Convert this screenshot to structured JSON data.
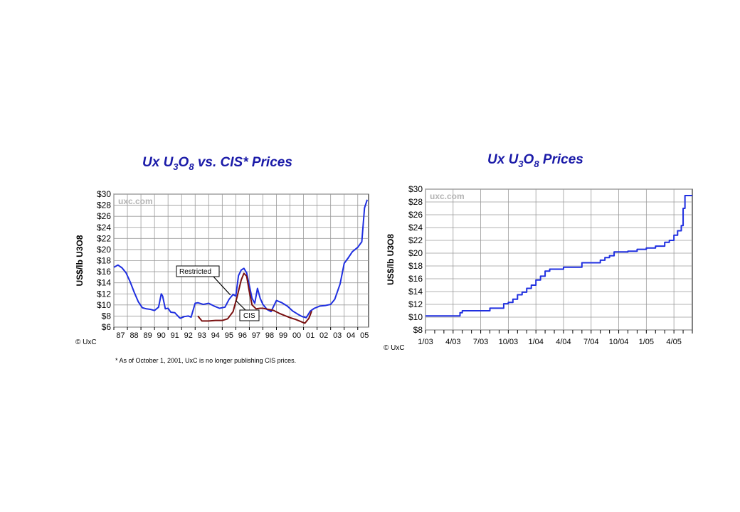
{
  "charts": [
    {
      "title": {
        "pre": "Ux U",
        "sub1": "3",
        "mid": "O",
        "sub2": "8",
        "post": " vs. CIS* Prices"
      },
      "ylabel": "US$/lb U3O8",
      "watermark": "uxc.com",
      "credit": "© UxC",
      "footnote": "* As of October 1, 2001, UxC is no longer publishing CIS prices.",
      "annotations": [
        "Restricted",
        "CIS"
      ]
    },
    {
      "title": {
        "pre": "Ux U",
        "sub1": "3",
        "mid": "O",
        "sub2": "8",
        "post": " Prices"
      },
      "ylabel": "US$/lb U3O8",
      "watermark": "uxc.com",
      "credit": "© UxC"
    }
  ],
  "chart_data": [
    {
      "type": "line",
      "title": "Ux U3O8 vs. CIS* Prices",
      "xlabel": "",
      "ylabel": "US$/lb U3O8",
      "ylim": [
        6,
        30
      ],
      "xlim": [
        1987,
        2005.8
      ],
      "y_ticks": [
        "$6",
        "$8",
        "$10",
        "$12",
        "$14",
        "$16",
        "$18",
        "$20",
        "$22",
        "$24",
        "$26",
        "$28",
        "$30"
      ],
      "x_ticks": [
        "87",
        "88",
        "89",
        "90",
        "91",
        "92",
        "93",
        "94",
        "95",
        "96",
        "97",
        "98",
        "99",
        "00",
        "01",
        "02",
        "03",
        "04",
        "05"
      ],
      "grid": true,
      "series": [
        {
          "name": "Restricted",
          "color": "#1f2fe0",
          "x": [
            1987.0,
            1987.3,
            1987.6,
            1987.9,
            1988.2,
            1988.5,
            1988.8,
            1989.1,
            1989.4,
            1989.7,
            1990.0,
            1990.3,
            1990.5,
            1990.6,
            1990.8,
            1991.0,
            1991.2,
            1991.5,
            1991.8,
            1991.9,
            1992.2,
            1992.5,
            1992.7,
            1993.0,
            1993.2,
            1993.6,
            1994.0,
            1994.4,
            1994.8,
            1995.2,
            1995.5,
            1995.8,
            1996.0,
            1996.2,
            1996.4,
            1996.6,
            1996.8,
            1997.0,
            1997.2,
            1997.4,
            1997.6,
            1997.8,
            1998.0,
            1998.3,
            1998.6,
            1999.0,
            1999.4,
            1999.8,
            2000.2,
            2000.6,
            2000.9,
            2001.2,
            2001.5,
            2001.8,
            2002.2,
            2002.6,
            2003.0,
            2003.3,
            2003.7,
            2004.0,
            2004.3,
            2004.6,
            2005.0,
            2005.3,
            2005.5,
            2005.7
          ],
          "values": [
            16.8,
            17.2,
            16.7,
            15.8,
            14.2,
            12.3,
            10.6,
            9.5,
            9.3,
            9.2,
            9.0,
            9.6,
            12.0,
            11.6,
            9.3,
            9.4,
            8.7,
            8.6,
            7.8,
            7.6,
            7.9,
            8.0,
            7.8,
            10.3,
            10.4,
            10.1,
            10.3,
            9.8,
            9.4,
            9.6,
            11.0,
            11.9,
            11.6,
            15.3,
            16.3,
            16.6,
            15.8,
            13.5,
            11.2,
            10.3,
            13.0,
            11.2,
            10.1,
            9.2,
            8.8,
            10.8,
            10.4,
            9.8,
            8.9,
            8.3,
            7.9,
            7.7,
            8.9,
            9.4,
            9.8,
            9.9,
            10.1,
            11.0,
            13.8,
            17.5,
            18.5,
            19.6,
            20.4,
            21.4,
            27.5,
            29.0
          ]
        },
        {
          "name": "CIS",
          "color": "#7a1010",
          "x": [
            1993.2,
            1993.5,
            1994.0,
            1994.5,
            1995.0,
            1995.4,
            1995.8,
            1996.1,
            1996.4,
            1996.6,
            1996.8,
            1997.0,
            1997.2,
            1997.5,
            1997.8,
            1998.0,
            1998.4,
            1998.8,
            1999.2,
            1999.6,
            2000.0,
            2000.4,
            2000.8,
            2001.1,
            2001.4,
            2001.6
          ],
          "values": [
            8.0,
            7.1,
            7.1,
            7.2,
            7.2,
            7.5,
            8.8,
            11.5,
            14.5,
            15.7,
            15.2,
            12.4,
            10.0,
            9.3,
            9.4,
            9.4,
            9.2,
            9.0,
            8.5,
            8.1,
            7.7,
            7.4,
            7.0,
            6.7,
            7.6,
            8.9
          ]
        }
      ]
    },
    {
      "type": "line",
      "title": "Ux U3O8 Prices",
      "xlabel": "",
      "ylabel": "US$/lb U3O8",
      "ylim": [
        8,
        30
      ],
      "xlim": [
        0,
        29
      ],
      "x_ticks": [
        "1/03",
        "4/03",
        "7/03",
        "10/03",
        "1/04",
        "4/04",
        "7/04",
        "10/04",
        "1/05",
        "4/05"
      ],
      "x_tick_positions": [
        0,
        3,
        6,
        9,
        12,
        15,
        18,
        21,
        24,
        27
      ],
      "y_ticks": [
        "$8",
        "$10",
        "$12",
        "$14",
        "$16",
        "$18",
        "$20",
        "$22",
        "$24",
        "$26",
        "$28",
        "$30"
      ],
      "grid": true,
      "series": [
        {
          "name": "Ux U3O8",
          "color": "#1f2fe0",
          "step": true,
          "x": [
            0,
            3.5,
            3.75,
            4.0,
            4.2,
            5.0,
            6.0,
            7.0,
            8.0,
            8.5,
            9.0,
            9.5,
            10.0,
            10.5,
            11.0,
            11.5,
            12.0,
            12.5,
            13.0,
            13.5,
            14.0,
            15.0,
            16.0,
            17.0,
            18.0,
            19.0,
            19.5,
            20.0,
            20.5,
            21.0,
            22.0,
            23.0,
            24.0,
            25.0,
            26.0,
            26.5,
            27.0,
            27.4,
            27.8,
            28.0,
            28.2,
            29.0
          ],
          "values": [
            10.2,
            10.2,
            10.7,
            11.0,
            11.0,
            11.0,
            11.0,
            11.4,
            11.4,
            12.1,
            12.3,
            12.8,
            13.5,
            13.9,
            14.5,
            15.0,
            15.8,
            16.4,
            17.2,
            17.5,
            17.5,
            17.8,
            17.8,
            18.5,
            18.5,
            18.9,
            19.3,
            19.6,
            20.2,
            20.2,
            20.3,
            20.6,
            20.8,
            21.1,
            21.7,
            22.0,
            22.8,
            23.5,
            24.3,
            27.0,
            29.0,
            29.0
          ]
        }
      ]
    }
  ]
}
